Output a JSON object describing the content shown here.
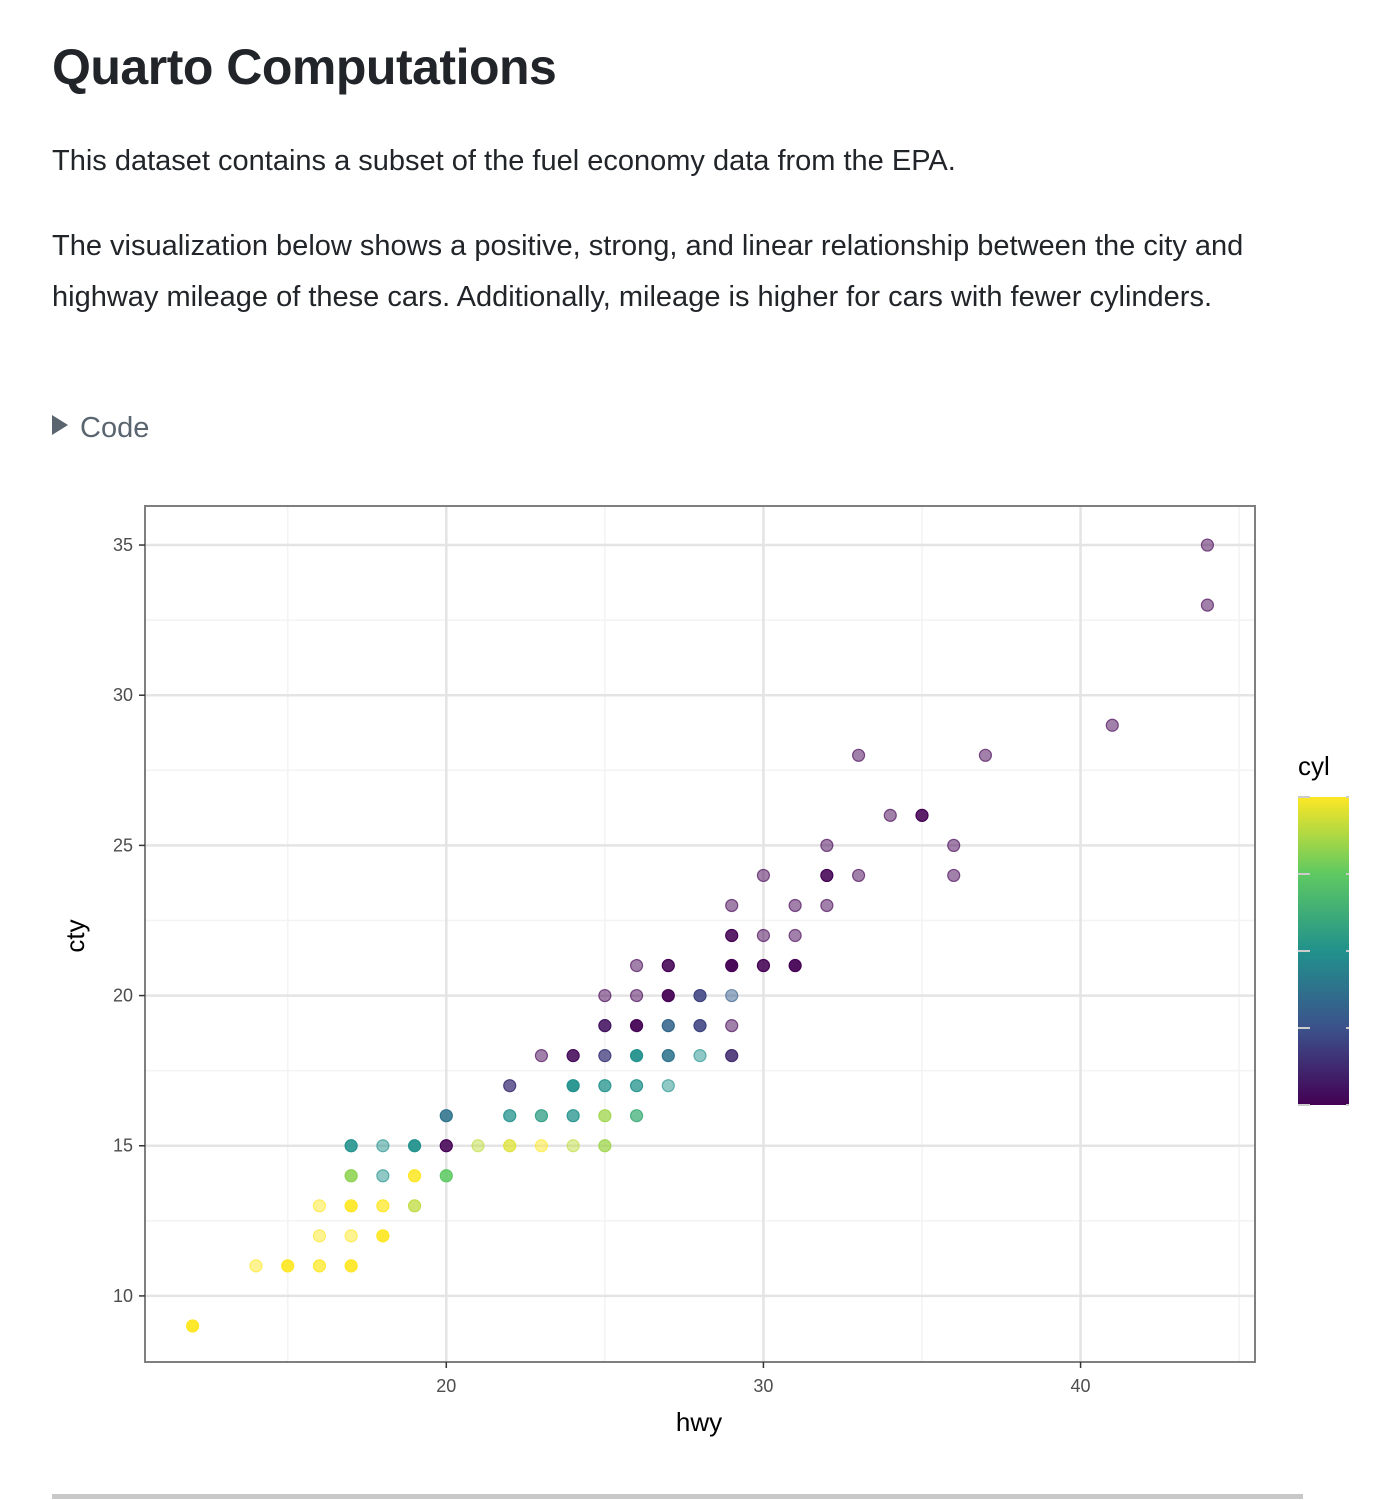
{
  "title": "Quarto Computations",
  "paragraphs": [
    "This dataset contains a subset of the fuel economy data from the EPA.",
    "The visualization below shows a positive, strong, and linear relationship between the city and highway mileage of these cars. Additionally, mileage is higher for cars with fewer cylinders."
  ],
  "code_toggle": {
    "label": "Code",
    "icon": "triangle-right-icon"
  },
  "chart_data": {
    "type": "scatter",
    "title": "",
    "xlabel": "hwy",
    "ylabel": "cty",
    "xlim": [
      10.5,
      45.5
    ],
    "ylim": [
      7.8,
      36.3
    ],
    "xticks": [
      "20",
      "30",
      "40"
    ],
    "yticks": [
      "10",
      "15",
      "20",
      "25",
      "30",
      "35"
    ],
    "grid": true,
    "color_scale": {
      "title": "cyl",
      "palette": "viridis",
      "range": [
        4,
        8
      ],
      "colors": [
        "#440154",
        "#3b528b",
        "#21918c",
        "#5ec962",
        "#fde725"
      ]
    },
    "legend_placement": "right",
    "points": [
      {
        "x": 44,
        "y": 35,
        "cyl": 4
      },
      {
        "x": 44,
        "y": 33,
        "cyl": 4
      },
      {
        "x": 41,
        "y": 29,
        "cyl": 4
      },
      {
        "x": 33,
        "y": 28,
        "cyl": 4
      },
      {
        "x": 37,
        "y": 28,
        "cyl": 4
      },
      {
        "x": 34,
        "y": 26,
        "cyl": 4
      },
      {
        "x": 35,
        "y": 26,
        "cyl": 4,
        "n": 3
      },
      {
        "x": 32,
        "y": 25,
        "cyl": 4
      },
      {
        "x": 36,
        "y": 25,
        "cyl": 4
      },
      {
        "x": 30,
        "y": 24,
        "cyl": 4
      },
      {
        "x": 32,
        "y": 24,
        "cyl": 4,
        "n": 3
      },
      {
        "x": 33,
        "y": 24,
        "cyl": 4
      },
      {
        "x": 36,
        "y": 24,
        "cyl": 4
      },
      {
        "x": 29,
        "y": 23,
        "cyl": 4
      },
      {
        "x": 31,
        "y": 23,
        "cyl": 4
      },
      {
        "x": 32,
        "y": 23,
        "cyl": 4
      },
      {
        "x": 29,
        "y": 22,
        "cyl": 4,
        "n": 3
      },
      {
        "x": 30,
        "y": 22,
        "cyl": 4
      },
      {
        "x": 31,
        "y": 22,
        "cyl": 4
      },
      {
        "x": 26,
        "y": 21,
        "cyl": 4
      },
      {
        "x": 27,
        "y": 21,
        "cyl": 4,
        "n": 3
      },
      {
        "x": 29,
        "y": 21,
        "cyl": 4,
        "n": 5
      },
      {
        "x": 30,
        "y": 21,
        "cyl": 4,
        "n": 3
      },
      {
        "x": 31,
        "y": 21,
        "cyl": 4,
        "n": 4
      },
      {
        "x": 25,
        "y": 20,
        "cyl": 4
      },
      {
        "x": 26,
        "y": 20,
        "cyl": 4
      },
      {
        "x": 27,
        "y": 20,
        "cyl": 4,
        "n": 4
      },
      {
        "x": 28,
        "y": 20,
        "cyl": 4.8,
        "n": 3
      },
      {
        "x": 29,
        "y": 20,
        "cyl": 5.2
      },
      {
        "x": 25,
        "y": 19,
        "cyl": 4.2,
        "n": 3
      },
      {
        "x": 26,
        "y": 19,
        "cyl": 4,
        "n": 4
      },
      {
        "x": 27,
        "y": 19,
        "cyl": 5.3,
        "n": 3
      },
      {
        "x": 28,
        "y": 19,
        "cyl": 4.8,
        "n": 3
      },
      {
        "x": 29,
        "y": 19,
        "cyl": 4
      },
      {
        "x": 23,
        "y": 18,
        "cyl": 4
      },
      {
        "x": 24,
        "y": 18,
        "cyl": 4.1,
        "n": 3
      },
      {
        "x": 25,
        "y": 18,
        "cyl": 4.7,
        "n": 2
      },
      {
        "x": 26,
        "y": 18,
        "cyl": 6,
        "n": 4
      },
      {
        "x": 27,
        "y": 18,
        "cyl": 5.5,
        "n": 3
      },
      {
        "x": 28,
        "y": 18,
        "cyl": 6
      },
      {
        "x": 29,
        "y": 18,
        "cyl": 4.5,
        "n": 3
      },
      {
        "x": 22,
        "y": 17,
        "cyl": 4.6,
        "n": 2
      },
      {
        "x": 24,
        "y": 17,
        "cyl": 6,
        "n": 4
      },
      {
        "x": 25,
        "y": 17,
        "cyl": 6,
        "n": 2
      },
      {
        "x": 26,
        "y": 17,
        "cyl": 6,
        "n": 2
      },
      {
        "x": 27,
        "y": 17,
        "cyl": 6
      },
      {
        "x": 20,
        "y": 16,
        "cyl": 5.5,
        "n": 3
      },
      {
        "x": 22,
        "y": 16,
        "cyl": 6,
        "n": 2
      },
      {
        "x": 23,
        "y": 16,
        "cyl": 6.2,
        "n": 2
      },
      {
        "x": 24,
        "y": 16,
        "cyl": 6,
        "n": 2
      },
      {
        "x": 25,
        "y": 16,
        "cyl": 7.4,
        "n": 2
      },
      {
        "x": 26,
        "y": 16,
        "cyl": 6.5,
        "n": 2
      },
      {
        "x": 17,
        "y": 15,
        "cyl": 6,
        "n": 3
      },
      {
        "x": 18,
        "y": 15,
        "cyl": 6
      },
      {
        "x": 19,
        "y": 15,
        "cyl": 6,
        "n": 4
      },
      {
        "x": 20,
        "y": 15,
        "cyl": 4,
        "n": 3
      },
      {
        "x": 21,
        "y": 15,
        "cyl": 7.6
      },
      {
        "x": 22,
        "y": 15,
        "cyl": 7.8,
        "n": 2
      },
      {
        "x": 23,
        "y": 15,
        "cyl": 8
      },
      {
        "x": 24,
        "y": 15,
        "cyl": 7.6
      },
      {
        "x": 25,
        "y": 15,
        "cyl": 7.4,
        "n": 2
      },
      {
        "x": 17,
        "y": 14,
        "cyl": 7.3,
        "n": 3
      },
      {
        "x": 18,
        "y": 14,
        "cyl": 6
      },
      {
        "x": 19,
        "y": 14,
        "cyl": 8,
        "n": 3
      },
      {
        "x": 20,
        "y": 14,
        "cyl": 7,
        "n": 3
      },
      {
        "x": 16,
        "y": 13,
        "cyl": 8
      },
      {
        "x": 17,
        "y": 13,
        "cyl": 8,
        "n": 4
      },
      {
        "x": 18,
        "y": 13,
        "cyl": 8,
        "n": 2
      },
      {
        "x": 19,
        "y": 13,
        "cyl": 7.6,
        "n": 2
      },
      {
        "x": 16,
        "y": 12,
        "cyl": 8
      },
      {
        "x": 17,
        "y": 12,
        "cyl": 8
      },
      {
        "x": 18,
        "y": 12,
        "cyl": 8,
        "n": 4
      },
      {
        "x": 14,
        "y": 11,
        "cyl": 8
      },
      {
        "x": 15,
        "y": 11,
        "cyl": 8,
        "n": 4
      },
      {
        "x": 16,
        "y": 11,
        "cyl": 8,
        "n": 2
      },
      {
        "x": 17,
        "y": 11,
        "cyl": 8,
        "n": 4
      },
      {
        "x": 12,
        "y": 9,
        "cyl": 8,
        "n": 5
      }
    ]
  }
}
